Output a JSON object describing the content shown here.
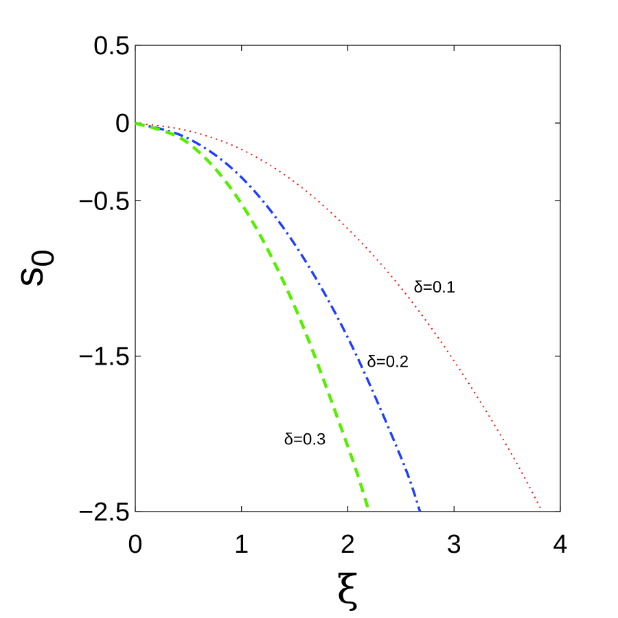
{
  "chart_data": {
    "type": "line",
    "xlabel": "ξ",
    "ylabel": "s",
    "ylabel_subscript": "0",
    "xlim": [
      0,
      4
    ],
    "ylim": [
      -2.5,
      0.5
    ],
    "x_ticks": [
      0,
      1,
      2,
      3,
      4
    ],
    "x_tick_labels": [
      "0",
      "1",
      "2",
      "3",
      "4"
    ],
    "y_ticks": [
      0.5,
      0,
      -0.5,
      -1.5,
      -2.5
    ],
    "y_tick_labels": [
      "0.5",
      "0",
      "−0.5",
      "−1.5",
      "−2.5"
    ],
    "grid": false,
    "series": [
      {
        "name": "δ=0.1",
        "color": "#ff0000",
        "style": "dotted",
        "x": [
          0,
          0.5,
          1.0,
          1.5,
          2.0,
          2.5,
          3.0,
          3.5,
          3.83
        ],
        "y": [
          0,
          -0.05,
          -0.17,
          -0.38,
          -0.68,
          -1.06,
          -1.53,
          -2.08,
          -2.5
        ]
      },
      {
        "name": "δ=0.2",
        "color": "#1f3fff",
        "style": "dashdot",
        "x": [
          0,
          0.5,
          1.0,
          1.5,
          2.0,
          2.5,
          2.68
        ],
        "y": [
          0,
          -0.1,
          -0.35,
          -0.78,
          -1.38,
          -2.15,
          -2.5
        ]
      },
      {
        "name": "δ=0.3",
        "color": "#55ee00",
        "style": "dashed",
        "x": [
          0,
          0.5,
          1.0,
          1.5,
          2.0,
          2.2
        ],
        "y": [
          0,
          -0.13,
          -0.52,
          -1.18,
          -2.08,
          -2.5
        ]
      }
    ],
    "annotations": [
      {
        "text": "δ=0.1",
        "x": 2.62,
        "y": -1.09
      },
      {
        "text": "δ=0.2",
        "x": 2.18,
        "y": -1.57
      },
      {
        "text": "δ=0.3",
        "x": 1.4,
        "y": -2.07
      }
    ]
  }
}
